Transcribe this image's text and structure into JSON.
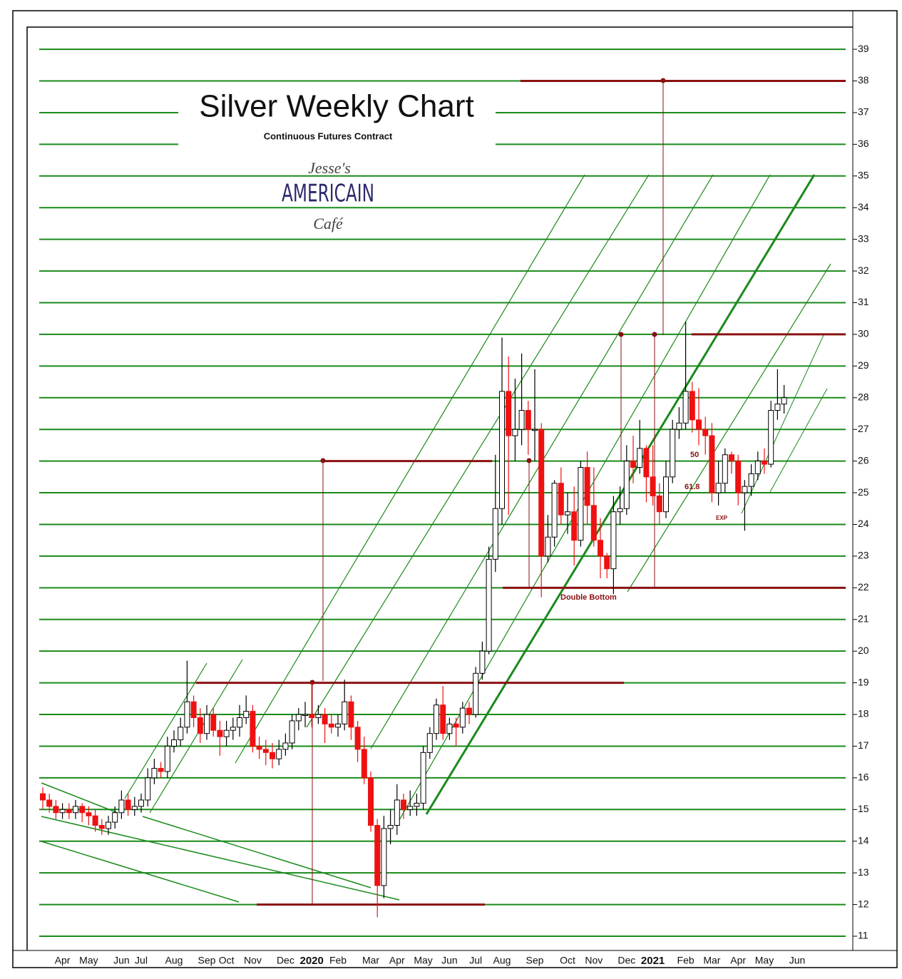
{
  "chart_data": {
    "type": "candlestick",
    "title": "Silver Weekly Chart",
    "subtitle": "Continuous Futures Contract",
    "logo": {
      "top": "Jesse's",
      "middle": "AMERICAIN",
      "bottom": "Café"
    },
    "annotations": [
      "50",
      "61.8",
      "EXP",
      "Double Bottom"
    ],
    "categories": [
      null,
      null,
      null,
      "Apr",
      null,
      null,
      null,
      "May",
      null,
      null,
      null,
      null,
      "Jun",
      null,
      null,
      "Jul",
      null,
      null,
      null,
      null,
      "Aug",
      null,
      null,
      null,
      null,
      "Sep",
      null,
      null,
      "Oct",
      null,
      null,
      null,
      "Nov",
      null,
      null,
      null,
      null,
      "Dec",
      null,
      null,
      null,
      "2020",
      null,
      null,
      null,
      "Feb",
      null,
      null,
      null,
      null,
      "Mar",
      null,
      null,
      null,
      "Apr",
      null,
      null,
      null,
      "May",
      null,
      null,
      null,
      "Jun",
      null,
      null,
      null,
      "Jul",
      null,
      null,
      null,
      "Aug",
      null,
      null,
      null,
      null,
      "Sep",
      null,
      null,
      null,
      null,
      "Oct",
      null,
      null,
      null,
      "Nov",
      null,
      null,
      null,
      null,
      "Dec",
      null,
      null,
      null,
      "2021",
      null,
      null,
      null,
      null,
      "Feb",
      null,
      null,
      null,
      "Mar",
      null,
      null,
      null,
      "Apr",
      null,
      null,
      null,
      "May",
      null,
      null,
      null,
      null,
      "Jun"
    ],
    "open": [
      15.5,
      15.3,
      15.1,
      14.9,
      15.0,
      14.9,
      15.1,
      14.9,
      14.8,
      14.5,
      14.4,
      14.6,
      14.9,
      15.3,
      15.0,
      15.1,
      15.3,
      16.0,
      16.3,
      16.2,
      17.0,
      17.2,
      17.6,
      18.4,
      17.9,
      17.4,
      18.0,
      17.5,
      17.3,
      17.5,
      17.6,
      17.9,
      18.1,
      17.0,
      16.9,
      16.8,
      16.6,
      16.9,
      17.1,
      17.8,
      18.0,
      18.0,
      17.9,
      18.0,
      17.7,
      17.6,
      17.7,
      18.4,
      17.6,
      16.9,
      16.0,
      14.5,
      12.6,
      14.4,
      14.5,
      15.3,
      15.0,
      15.1,
      15.2,
      16.8,
      17.4,
      18.3,
      17.4,
      17.7,
      17.6,
      18.2,
      18.0,
      19.3,
      20.0,
      22.9,
      24.5,
      28.2,
      26.8,
      27.0,
      27.6,
      27.0,
      27.0,
      23.0,
      23.6,
      25.3,
      24.3,
      24.4,
      23.5,
      25.8,
      24.6,
      23.5,
      23.0,
      22.6,
      24.4,
      24.5,
      26.0,
      25.8,
      26.4,
      25.5,
      24.9,
      24.4,
      25.5,
      27.0,
      27.2,
      28.2,
      27.3,
      27.0,
      26.8,
      25.0,
      25.3,
      26.2,
      26.0,
      25.0,
      25.2,
      25.6,
      26.0,
      25.9,
      27.6,
      27.8,
      null,
      null
    ],
    "high": [
      15.7,
      15.5,
      15.3,
      15.2,
      15.2,
      15.3,
      15.2,
      15.1,
      15.0,
      14.7,
      14.8,
      15.1,
      15.6,
      15.5,
      15.4,
      15.5,
      16.3,
      16.6,
      16.5,
      17.3,
      17.5,
      17.9,
      19.7,
      18.6,
      18.2,
      18.3,
      18.2,
      17.8,
      17.8,
      17.9,
      18.3,
      18.6,
      18.3,
      17.3,
      17.2,
      17.1,
      17.2,
      17.4,
      18.0,
      18.2,
      18.4,
      19.0,
      18.3,
      18.2,
      18.0,
      18.0,
      19.1,
      18.6,
      17.8,
      17.3,
      16.2,
      14.7,
      14.8,
      15.0,
      15.8,
      15.5,
      15.6,
      15.5,
      17.0,
      17.6,
      18.5,
      18.9,
      17.9,
      17.9,
      18.4,
      18.4,
      19.5,
      20.3,
      23.3,
      26.2,
      29.9,
      29.3,
      28.6,
      29.4,
      27.9,
      28.9,
      27.2,
      24.3,
      25.4,
      25.8,
      25.0,
      25.2,
      26.0,
      26.3,
      25.8,
      24.2,
      23.1,
      24.9,
      25.2,
      26.5,
      26.8,
      27.3,
      26.5,
      26.5,
      25.3,
      26.0,
      27.3,
      27.7,
      30.4,
      28.5,
      28.3,
      27.4,
      27.2,
      26.0,
      26.4,
      26.3,
      26.2,
      25.4,
      25.9,
      26.3,
      26.4,
      27.9,
      28.9,
      28.4,
      null,
      null
    ],
    "low": [
      15.0,
      14.9,
      14.7,
      14.7,
      14.7,
      14.7,
      14.6,
      14.5,
      14.3,
      14.2,
      14.2,
      14.4,
      14.7,
      14.8,
      14.8,
      14.9,
      15.1,
      15.8,
      16.0,
      16.0,
      16.8,
      17.0,
      17.4,
      17.6,
      17.1,
      17.2,
      17.3,
      16.7,
      17.0,
      17.2,
      17.3,
      17.7,
      16.8,
      16.6,
      16.4,
      16.3,
      16.4,
      16.7,
      16.9,
      17.5,
      17.6,
      17.6,
      17.7,
      17.1,
      17.4,
      17.3,
      17.5,
      17.2,
      16.5,
      15.8,
      14.3,
      11.6,
      12.2,
      13.9,
      14.2,
      14.7,
      14.8,
      14.8,
      15.0,
      16.6,
      17.2,
      17.2,
      17.2,
      17.0,
      17.4,
      17.7,
      17.9,
      19.1,
      19.9,
      22.5,
      24.0,
      24.3,
      26.0,
      26.5,
      26.2,
      26.0,
      21.7,
      22.8,
      23.3,
      24.0,
      23.7,
      22.7,
      23.3,
      24.0,
      23.3,
      22.3,
      22.3,
      21.8,
      24.0,
      24.3,
      25.3,
      25.6,
      24.7,
      24.6,
      24.0,
      24.2,
      25.3,
      26.7,
      27.0,
      26.9,
      26.5,
      26.2,
      24.7,
      24.6,
      25.0,
      25.6,
      24.6,
      23.8,
      24.9,
      25.4,
      25.6,
      25.8,
      27.3,
      27.5,
      null,
      null
    ],
    "close": [
      15.3,
      15.1,
      14.9,
      15.0,
      14.9,
      15.1,
      14.9,
      14.8,
      14.5,
      14.4,
      14.6,
      14.9,
      15.3,
      15.0,
      15.1,
      15.3,
      16.0,
      16.3,
      16.2,
      17.0,
      17.2,
      17.6,
      18.4,
      17.9,
      17.4,
      18.0,
      17.5,
      17.3,
      17.5,
      17.6,
      17.9,
      18.1,
      17.0,
      16.9,
      16.8,
      16.6,
      16.9,
      17.1,
      17.8,
      18.0,
      18.0,
      17.9,
      18.0,
      17.7,
      17.6,
      17.7,
      18.4,
      17.6,
      16.9,
      16.0,
      14.5,
      12.6,
      14.4,
      14.5,
      15.3,
      15.0,
      15.1,
      15.2,
      16.8,
      17.4,
      18.3,
      17.4,
      17.7,
      17.6,
      18.2,
      18.0,
      19.3,
      20.0,
      22.9,
      24.5,
      28.2,
      26.8,
      27.0,
      27.6,
      27.0,
      27.0,
      23.0,
      23.6,
      25.3,
      24.3,
      24.4,
      23.5,
      25.8,
      24.6,
      23.5,
      23.0,
      22.6,
      24.4,
      24.5,
      26.0,
      25.8,
      26.4,
      25.5,
      24.9,
      24.4,
      25.5,
      27.0,
      27.2,
      28.2,
      27.3,
      27.0,
      26.8,
      25.0,
      25.3,
      26.2,
      26.0,
      25.0,
      25.2,
      25.6,
      26.0,
      25.9,
      27.6,
      27.8,
      28.0,
      null,
      null
    ],
    "up_color": "#ffffff",
    "down_color": "#ee1111",
    "grid_color": "#1a8a1a",
    "level_color": "#8b1010",
    "levels": [
      38,
      30,
      26,
      22,
      19,
      12
    ],
    "ylim": [
      10.55,
      39.7
    ],
    "yticks": [
      11,
      12,
      13,
      14,
      15,
      16,
      17,
      18,
      19,
      20,
      21,
      22,
      23,
      24,
      25,
      26,
      27,
      28,
      29,
      30,
      31,
      32,
      33,
      34,
      35,
      36,
      37,
      38,
      39
    ],
    "grid": true
  }
}
